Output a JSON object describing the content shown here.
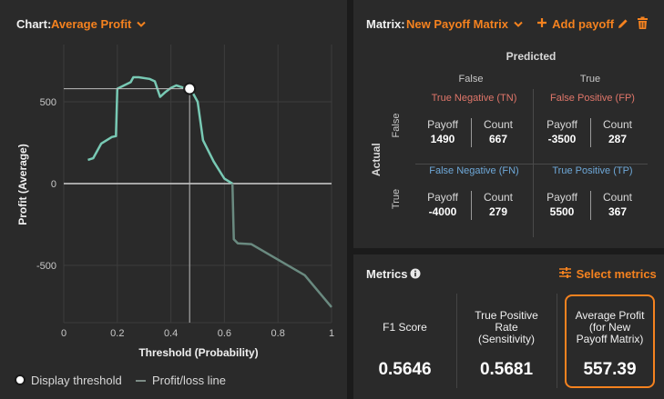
{
  "chart_header": {
    "label": "Chart:",
    "value": "Average Profit"
  },
  "chart_data": {
    "type": "line",
    "title": "Average Profit",
    "xlabel": "Threshold (Probability)",
    "ylabel": "Profit (Average)",
    "xlim": [
      0,
      1
    ],
    "ylim": [
      -850,
      850
    ],
    "x_ticks": [
      "0",
      "0.2",
      "0.4",
      "0.6",
      "0.8",
      "1"
    ],
    "x_tick_values": [
      0,
      0.2,
      0.4,
      0.6,
      0.8,
      1
    ],
    "y_ticks": [
      "500",
      "0",
      "-500"
    ],
    "y_tick_values": [
      500,
      0,
      -500
    ],
    "display_threshold": {
      "x": 0.47,
      "y": 580
    },
    "series": [
      {
        "name": "Profit/loss line",
        "x": [
          0.09,
          0.11,
          0.14,
          0.18,
          0.195,
          0.2,
          0.25,
          0.26,
          0.28,
          0.32,
          0.34,
          0.36,
          0.38,
          0.4,
          0.42,
          0.44,
          0.46,
          0.47,
          0.48,
          0.5,
          0.52,
          0.56,
          0.6,
          0.63,
          0.635,
          0.65,
          0.7,
          0.8,
          0.9,
          1.0
        ],
        "y": [
          145,
          155,
          245,
          285,
          290,
          580,
          620,
          650,
          650,
          640,
          625,
          530,
          560,
          585,
          600,
          590,
          575,
          580,
          560,
          500,
          265,
          135,
          30,
          0,
          -340,
          -365,
          -370,
          -465,
          -560,
          -755
        ]
      }
    ]
  },
  "legend": {
    "threshold_label": "Display threshold",
    "line_label": "Profit/loss line"
  },
  "matrix_header": {
    "label": "Matrix:",
    "value": "New Payoff Matrix",
    "add_label": "Add payoff"
  },
  "matrix": {
    "predicted_label": "Predicted",
    "actual_label": "Actual",
    "col_false": "False",
    "col_true": "True",
    "row_false": "False",
    "row_true": "True",
    "payoff_label": "Payoff",
    "count_label": "Count",
    "tn": {
      "label": "True Negative (TN)",
      "payoff": "1490",
      "count": "667"
    },
    "fp": {
      "label": "False Positive (FP)",
      "payoff": "-3500",
      "count": "287"
    },
    "fn": {
      "label": "False Negative (FN)",
      "payoff": "-4000",
      "count": "279"
    },
    "tp": {
      "label": "True Positive (TP)",
      "payoff": "5500",
      "count": "367"
    }
  },
  "metrics_header": {
    "label": "Metrics",
    "select_label": "Select metrics"
  },
  "metrics": {
    "f1": {
      "line1": "F1 Score",
      "value": "0.5646"
    },
    "tpr": {
      "line1": "True Positive",
      "line2": "Rate",
      "line3": "(Sensitivity)",
      "value": "0.5681"
    },
    "avg_profit": {
      "line1": "Average Profit",
      "line2": "(for New",
      "line3": "Payoff Matrix)",
      "value": "557.39"
    }
  },
  "colors": {
    "accent": "#f5821f",
    "line": "#78c9b4",
    "grid": "#3c3c3c"
  }
}
